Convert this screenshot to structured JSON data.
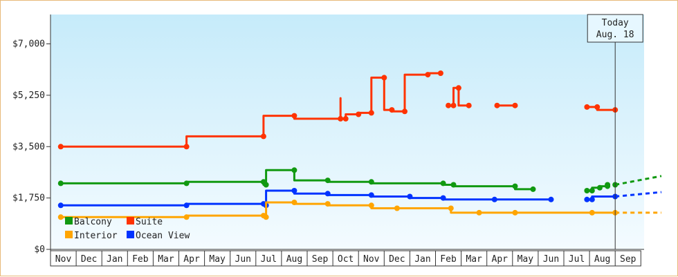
{
  "chart_data": {
    "type": "line",
    "title": "",
    "xlabel": "",
    "ylabel": "",
    "ylim": [
      0,
      8000
    ],
    "y_ticks": [
      "$0",
      "$1,750",
      "$3,500",
      "$5,250",
      "$7,000"
    ],
    "y_tick_values": [
      0,
      1750,
      3500,
      5250,
      7000
    ],
    "x_ticks": [
      "Nov",
      "Dec",
      "Jan",
      "Feb",
      "Mar",
      "Apr",
      "May",
      "Jun",
      "Jul",
      "Aug",
      "Sep",
      "Oct",
      "Nov",
      "Dec",
      "Jan",
      "Feb",
      "Mar",
      "Apr",
      "May",
      "Jun",
      "Jul",
      "Aug",
      "Sep"
    ],
    "today_marker": {
      "line1": "Today",
      "line2": "Aug. 18",
      "x": 21.5
    },
    "legend": [
      {
        "name": "Balcony",
        "color": "#119911"
      },
      {
        "name": "Suite",
        "color": "#ff3300"
      },
      {
        "name": "Interior",
        "color": "#ffa500"
      },
      {
        "name": "Ocean View",
        "color": "#0033ff"
      }
    ],
    "series": [
      {
        "name": "Suite",
        "color": "#ff3300",
        "segments": [
          [
            [
              -0.1,
              3500
            ],
            [
              4.8,
              3500
            ],
            [
              4.8,
              3850
            ],
            [
              7.8,
              3850
            ],
            [
              7.8,
              4550
            ],
            [
              9.0,
              4550
            ],
            [
              9.0,
              4450
            ],
            [
              10.8,
              4450
            ],
            [
              10.8,
              5150
            ],
            [
              10.8,
              4450
            ],
            [
              11.0,
              4450
            ],
            [
              11.0,
              4600
            ],
            [
              11.5,
              4600
            ],
            [
              11.5,
              4650
            ],
            [
              12.0,
              4650
            ],
            [
              12.0,
              5850
            ],
            [
              12.5,
              5850
            ],
            [
              12.5,
              4750
            ],
            [
              12.8,
              4750
            ],
            [
              12.8,
              4700
            ],
            [
              13.3,
              4700
            ],
            [
              13.3,
              5950
            ],
            [
              14.2,
              5950
            ],
            [
              14.2,
              6000
            ],
            [
              14.7,
              6000
            ]
          ],
          [
            [
              15.0,
              4900
            ],
            [
              15.2,
              4900
            ],
            [
              15.2,
              5500
            ],
            [
              15.4,
              5500
            ],
            [
              15.4,
              4900
            ],
            [
              15.8,
              4900
            ]
          ],
          [
            [
              16.9,
              4900
            ],
            [
              17.6,
              4900
            ]
          ],
          [
            [
              20.4,
              4850
            ],
            [
              20.8,
              4850
            ],
            [
              20.8,
              4750
            ],
            [
              21.5,
              4750
            ]
          ]
        ],
        "forecast": []
      },
      {
        "name": "Balcony",
        "color": "#119911",
        "segments": [
          [
            [
              -0.1,
              2250
            ],
            [
              4.8,
              2250
            ],
            [
              4.8,
              2300
            ],
            [
              7.8,
              2300
            ],
            [
              7.8,
              2200
            ],
            [
              7.9,
              2200
            ],
            [
              7.9,
              2700
            ],
            [
              9.0,
              2700
            ],
            [
              9.0,
              2350
            ],
            [
              10.3,
              2350
            ],
            [
              10.3,
              2300
            ],
            [
              12.0,
              2300
            ],
            [
              12.0,
              2250
            ],
            [
              14.8,
              2250
            ],
            [
              14.8,
              2200
            ],
            [
              15.2,
              2200
            ],
            [
              15.2,
              2150
            ],
            [
              17.6,
              2150
            ],
            [
              17.6,
              2050
            ],
            [
              18.3,
              2050
            ]
          ],
          [
            [
              20.4,
              2000
            ],
            [
              20.6,
              2000
            ],
            [
              20.6,
              2100
            ],
            [
              20.9,
              2100
            ],
            [
              20.9,
              2150
            ],
            [
              21.2,
              2150
            ],
            [
              21.2,
              2200
            ]
          ],
          [
            [
              21.5,
              2200
            ]
          ]
        ],
        "forecast": [
          [
            21.5,
            2200
          ],
          [
            23.3,
            2500
          ]
        ]
      },
      {
        "name": "Ocean View",
        "color": "#0033ff",
        "segments": [
          [
            [
              -0.1,
              1500
            ],
            [
              4.8,
              1500
            ],
            [
              4.8,
              1550
            ],
            [
              7.8,
              1550
            ],
            [
              7.8,
              1500
            ],
            [
              7.9,
              1500
            ],
            [
              7.9,
              2000
            ],
            [
              9.0,
              2000
            ],
            [
              9.0,
              1900
            ],
            [
              10.3,
              1900
            ],
            [
              10.3,
              1850
            ],
            [
              12.0,
              1850
            ],
            [
              12.0,
              1800
            ],
            [
              13.5,
              1800
            ],
            [
              13.5,
              1750
            ],
            [
              14.8,
              1750
            ],
            [
              14.8,
              1700
            ],
            [
              16.8,
              1700
            ],
            [
              16.8,
              1700
            ],
            [
              19.0,
              1700
            ]
          ],
          [
            [
              20.4,
              1700
            ],
            [
              20.6,
              1700
            ],
            [
              20.6,
              1800
            ],
            [
              21.5,
              1800
            ]
          ]
        ],
        "forecast": [
          [
            21.5,
            1800
          ],
          [
            23.3,
            1950
          ]
        ]
      },
      {
        "name": "Interior",
        "color": "#ffa500",
        "segments": [
          [
            [
              -0.1,
              1100
            ],
            [
              4.8,
              1100
            ],
            [
              4.8,
              1150
            ],
            [
              7.8,
              1150
            ],
            [
              7.8,
              1100
            ],
            [
              7.9,
              1100
            ],
            [
              7.9,
              1600
            ],
            [
              9.0,
              1600
            ],
            [
              9.0,
              1550
            ],
            [
              10.3,
              1550
            ],
            [
              10.3,
              1500
            ],
            [
              12.0,
              1500
            ],
            [
              12.0,
              1400
            ],
            [
              13.0,
              1400
            ],
            [
              13.0,
              1400
            ],
            [
              15.1,
              1400
            ],
            [
              15.1,
              1250
            ],
            [
              16.2,
              1250
            ],
            [
              17.6,
              1250
            ],
            [
              20.6,
              1250
            ],
            [
              21.5,
              1250
            ]
          ]
        ],
        "forecast": [
          [
            21.5,
            1250
          ],
          [
            23.3,
            1250
          ]
        ]
      }
    ]
  }
}
